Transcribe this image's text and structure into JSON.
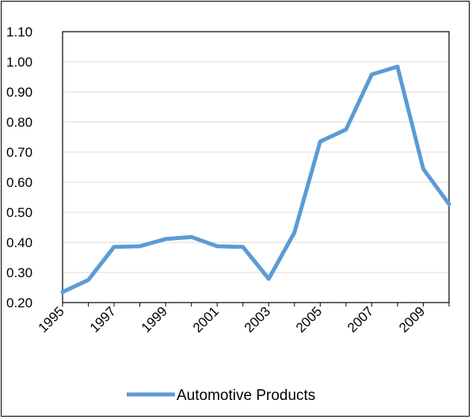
{
  "chart_data": {
    "type": "line",
    "title": "",
    "xlabel": "",
    "ylabel": "",
    "x": [
      1995,
      1996,
      1997,
      1998,
      1999,
      2000,
      2001,
      2002,
      2003,
      2004,
      2005,
      2006,
      2007,
      2008,
      2009,
      2010
    ],
    "x_tick_labels": [
      "1995",
      "1997",
      "1999",
      "2001",
      "2003",
      "2005",
      "2007",
      "2009"
    ],
    "y_tick_labels": [
      "0.20",
      "0.30",
      "0.40",
      "0.50",
      "0.60",
      "0.70",
      "0.80",
      "0.90",
      "1.00",
      "1.10"
    ],
    "ylim": [
      0.2,
      1.1
    ],
    "grid": true,
    "legend_position": "bottom",
    "series": [
      {
        "name": "Automotive Products",
        "color": "#5b9bd5",
        "values": [
          0.235,
          0.275,
          0.385,
          0.387,
          0.411,
          0.418,
          0.387,
          0.385,
          0.279,
          0.433,
          0.735,
          0.775,
          0.958,
          0.984,
          0.644,
          0.527
        ]
      }
    ]
  }
}
